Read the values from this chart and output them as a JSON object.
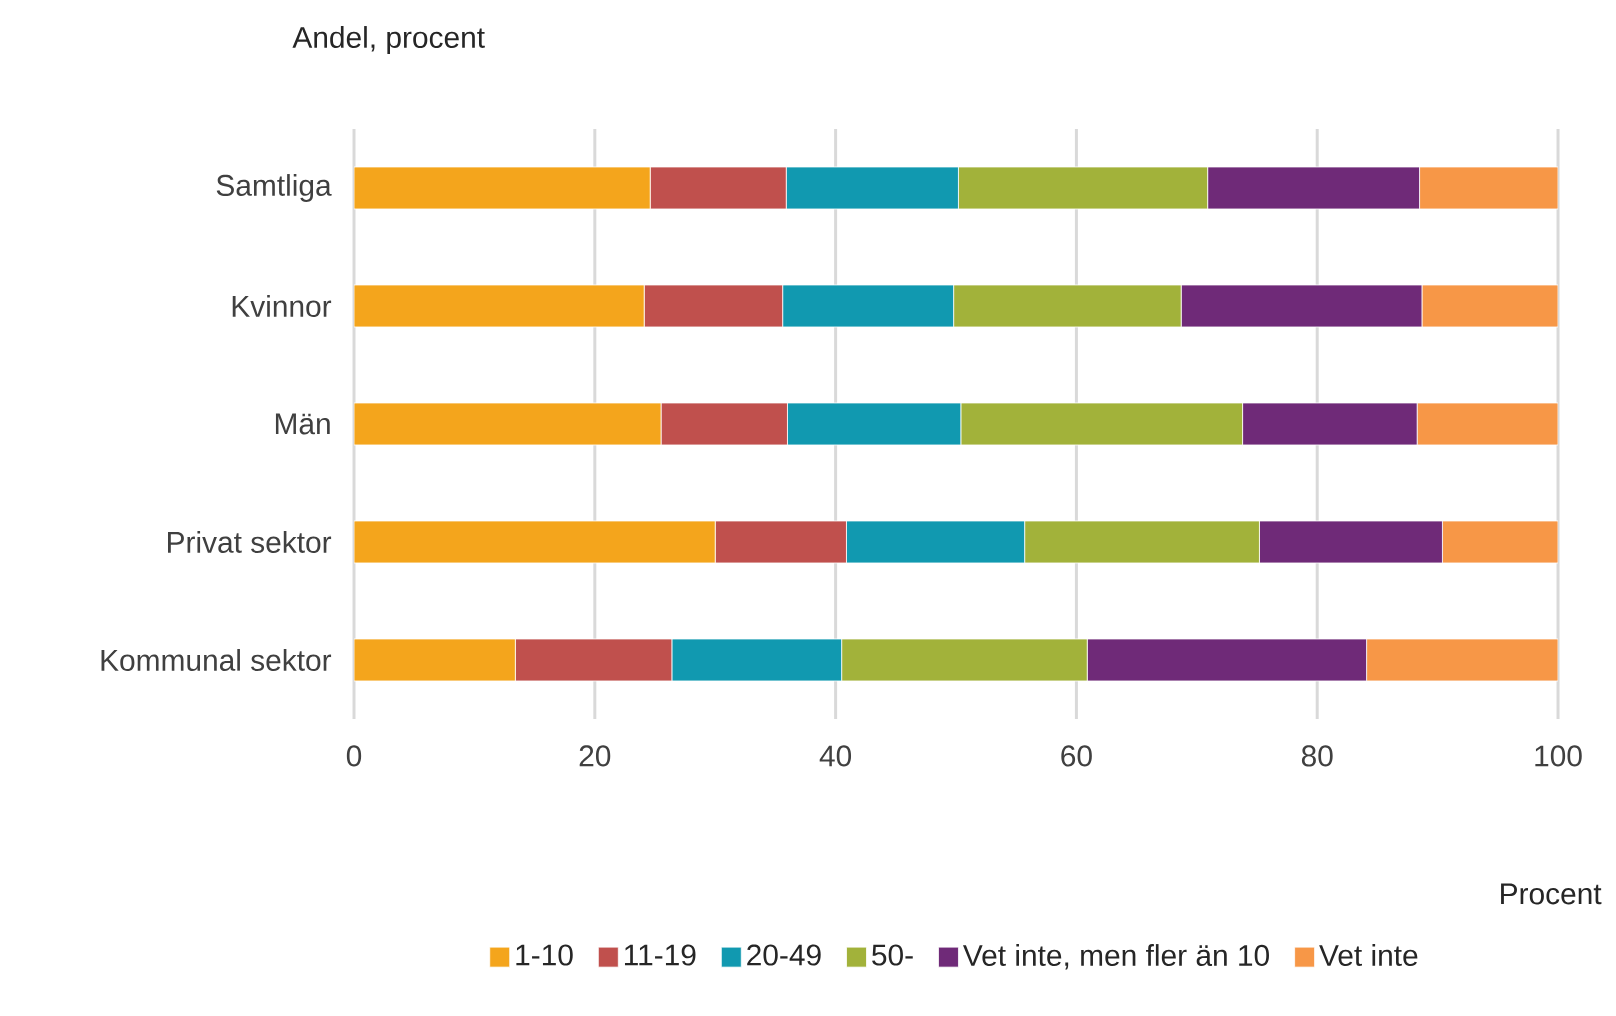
{
  "chart_data": {
    "type": "bar",
    "orientation": "horizontal",
    "stacked": true,
    "title": "Andel, procent",
    "xlabel": "Procent",
    "categories": [
      "Samtliga",
      "Kvinnor",
      "Män",
      "Privat sektor",
      "Kommunal sektor"
    ],
    "series": [
      {
        "name": "1-10",
        "color": "#f4a51c",
        "values": [
          24.6,
          24.1,
          25.5,
          30.0,
          13.4
        ]
      },
      {
        "name": "11-19",
        "color": "#c0504d",
        "values": [
          11.3,
          11.5,
          10.5,
          10.9,
          13.0
        ]
      },
      {
        "name": "20-49",
        "color": "#1199b0",
        "values": [
          14.3,
          14.2,
          14.4,
          14.8,
          14.1
        ]
      },
      {
        "name": "50-",
        "color": "#a2b23a",
        "values": [
          20.7,
          18.9,
          23.4,
          19.5,
          20.4
        ]
      },
      {
        "name": "Vet inte, men fler än 10",
        "color": "#6f2a78",
        "values": [
          17.6,
          20.0,
          14.5,
          15.2,
          23.2
        ]
      },
      {
        "name": "Vet inte",
        "color": "#f79747",
        "values": [
          11.5,
          11.3,
          11.7,
          9.6,
          15.9
        ]
      }
    ],
    "xlim": [
      0,
      100
    ],
    "xticks": [
      0,
      20,
      40,
      60,
      80,
      100
    ],
    "grid": "x",
    "legend": "bottom"
  }
}
